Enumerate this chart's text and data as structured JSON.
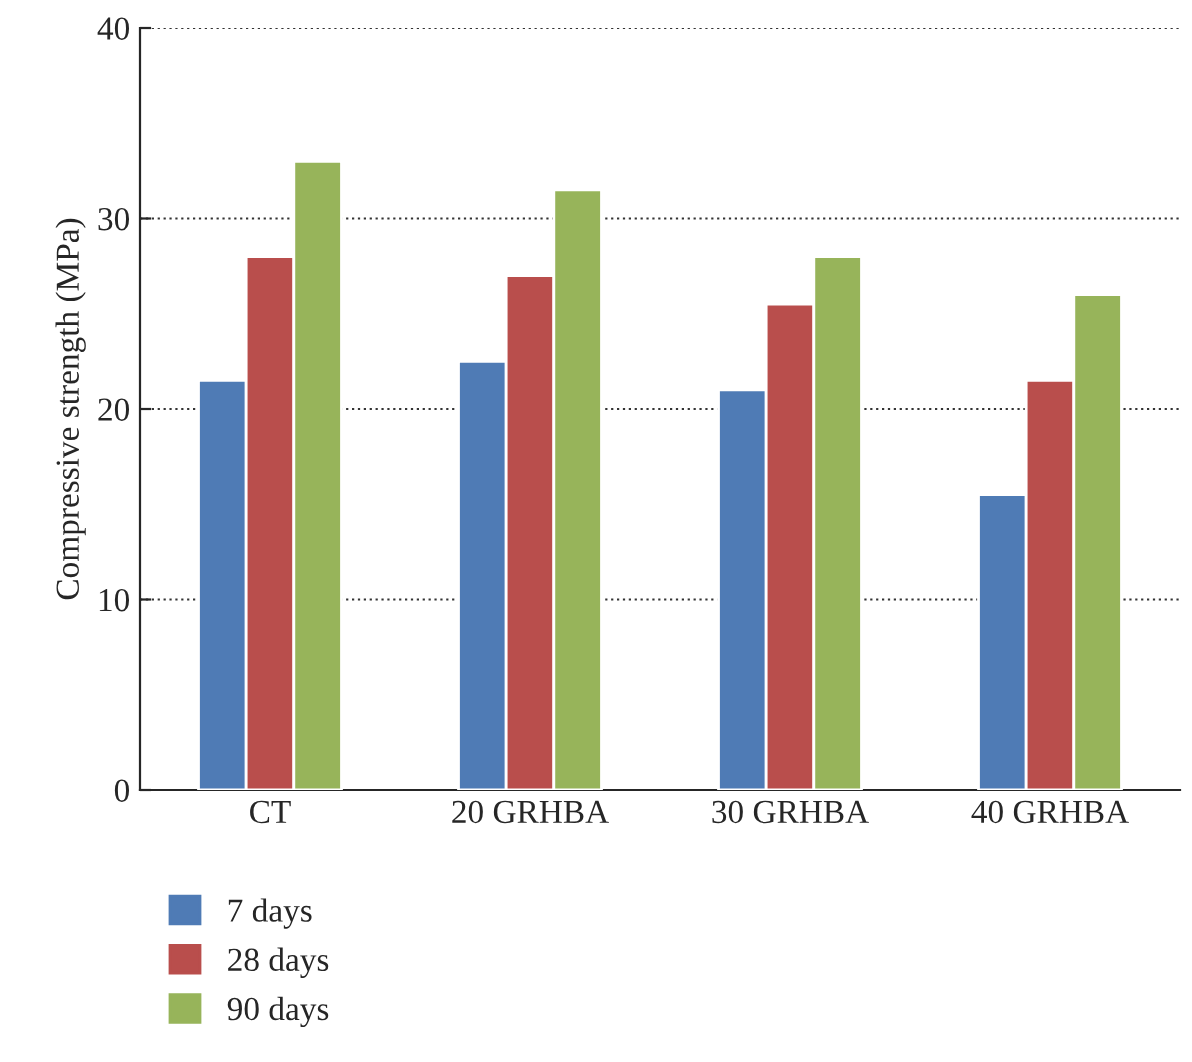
{
  "chart_data": {
    "type": "bar",
    "ylabel": "Compressive strength (MPa)",
    "categories": [
      "CT",
      "20 GRHBA",
      "30 GRHBA",
      "40 GRHBA"
    ],
    "series": [
      {
        "name": "7 days",
        "color": "#4f7bb5",
        "values": [
          21.5,
          22.5,
          21,
          15.5
        ]
      },
      {
        "name": "28 days",
        "color": "#b94e4c",
        "values": [
          28,
          27,
          25.5,
          21.5
        ]
      },
      {
        "name": "90 days",
        "color": "#97b45a",
        "values": [
          33,
          31.5,
          28,
          26
        ]
      }
    ],
    "ylim": [
      0,
      40
    ],
    "yticks": [
      0,
      10,
      20,
      30,
      40
    ],
    "grid": "y",
    "legend": "bottom"
  }
}
